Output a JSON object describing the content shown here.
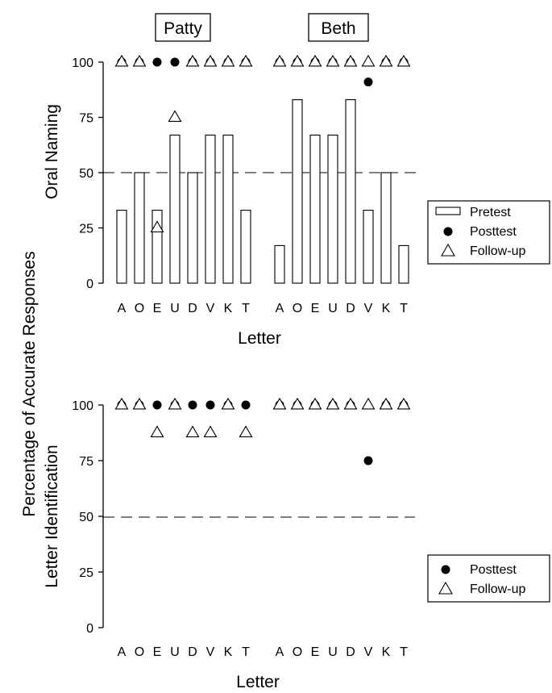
{
  "y_label_line1": "Percentage of Accurate Responses",
  "chart_data": [
    {
      "type": "bar",
      "panel_label": "Oral Naming",
      "xlabel": "Letter",
      "ylim": [
        0,
        100
      ],
      "yticks": [
        0,
        25,
        50,
        75,
        100
      ],
      "reference_line": 50,
      "grid": false,
      "legend_position": "right",
      "legend": [
        "Pretest",
        "Posttest",
        "Follow-up"
      ],
      "groups": [
        {
          "name": "Patty",
          "categories": [
            "A",
            "O",
            "E",
            "U",
            "D",
            "V",
            "K",
            "T"
          ],
          "series": [
            {
              "name": "Pretest",
              "values": [
                33,
                50,
                33,
                67,
                50,
                67,
                67,
                33
              ]
            },
            {
              "name": "Posttest",
              "values": [
                100,
                100,
                100,
                100,
                100,
                100,
                100,
                100
              ]
            },
            {
              "name": "Follow-up",
              "values": [
                100,
                100,
                25,
                75,
                100,
                100,
                100,
                100
              ]
            }
          ]
        },
        {
          "name": "Beth",
          "categories": [
            "A",
            "O",
            "E",
            "U",
            "D",
            "V",
            "K",
            "T"
          ],
          "series": [
            {
              "name": "Pretest",
              "values": [
                17,
                83,
                67,
                67,
                83,
                33,
                50,
                17
              ]
            },
            {
              "name": "Posttest",
              "values": [
                100,
                100,
                100,
                100,
                100,
                91,
                100,
                100
              ]
            },
            {
              "name": "Follow-up",
              "values": [
                100,
                100,
                100,
                100,
                100,
                100,
                100,
                100
              ]
            }
          ]
        }
      ]
    },
    {
      "type": "scatter",
      "panel_label": "Letter Identification",
      "xlabel": "Letter",
      "ylim": [
        0,
        100
      ],
      "yticks": [
        0,
        25,
        50,
        75,
        100
      ],
      "reference_line": 50,
      "grid": false,
      "legend_position": "right",
      "legend": [
        "Posttest",
        "Follow-up"
      ],
      "groups": [
        {
          "categories": [
            "A",
            "O",
            "E",
            "U",
            "D",
            "V",
            "K",
            "T"
          ],
          "series": [
            {
              "name": "Posttest",
              "values": [
                100,
                100,
                100,
                100,
                100,
                100,
                100,
                100
              ]
            },
            {
              "name": "Follow-up",
              "values": [
                100,
                100,
                87.5,
                100,
                87.5,
                87.5,
                100,
                87.5
              ]
            }
          ]
        },
        {
          "categories": [
            "A",
            "O",
            "E",
            "U",
            "D",
            "V",
            "K",
            "T"
          ],
          "series": [
            {
              "name": "Posttest",
              "values": [
                100,
                100,
                100,
                100,
                100,
                75,
                100,
                100
              ]
            },
            {
              "name": "Follow-up",
              "values": [
                100,
                100,
                100,
                100,
                100,
                100,
                100,
                100
              ]
            }
          ]
        }
      ]
    }
  ]
}
